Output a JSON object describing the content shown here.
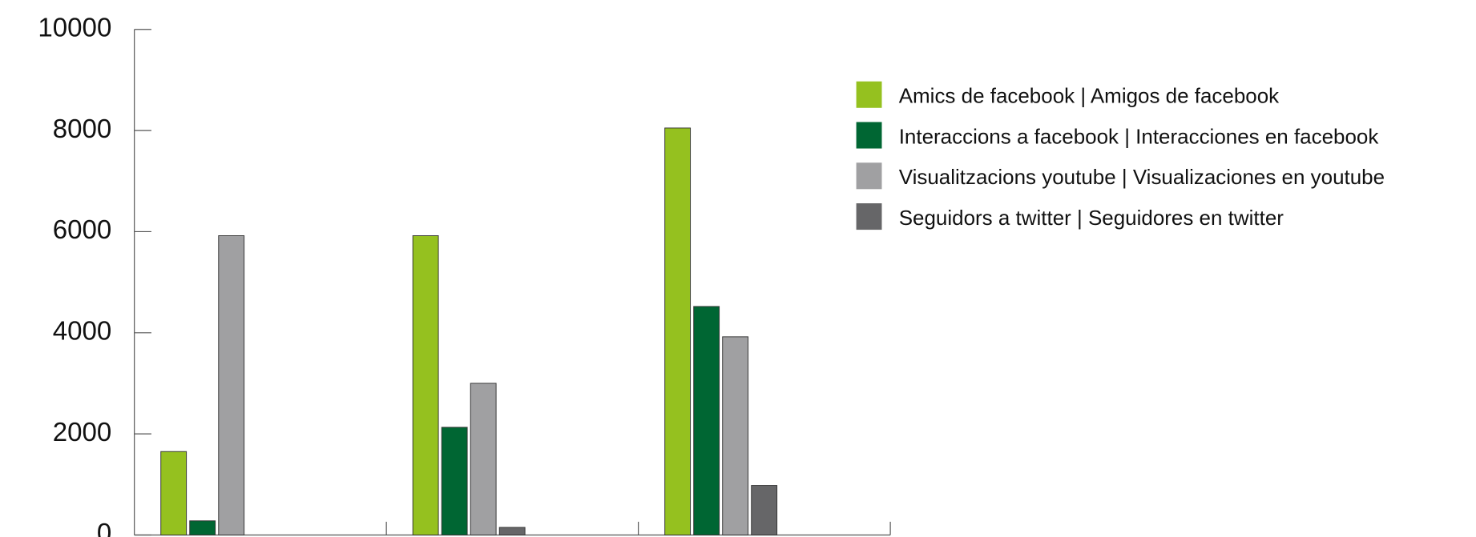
{
  "chart_data": {
    "type": "bar",
    "categories": [
      null,
      null,
      null
    ],
    "series": [
      {
        "name": "Amics de facebook | Amigos de facebook",
        "color": "#95c11f",
        "values": [
          1650,
          5920,
          8050
        ]
      },
      {
        "name": "Interaccions a facebook | Interacciones en facebook",
        "color": "#006633",
        "values": [
          280,
          2130,
          4520
        ]
      },
      {
        "name": "Visualitzacions youtube | Visualizaciones en youtube",
        "color": "#a0a0a2",
        "values": [
          5920,
          3000,
          3920
        ]
      },
      {
        "name": "Seguidors a twitter | Seguidores en twitter",
        "color": "#666668",
        "values": [
          null,
          150,
          980
        ]
      }
    ],
    "ylim": [
      0,
      10000
    ],
    "yticks": [
      0,
      2000,
      4000,
      6000,
      8000,
      10000
    ],
    "legend": "right"
  }
}
